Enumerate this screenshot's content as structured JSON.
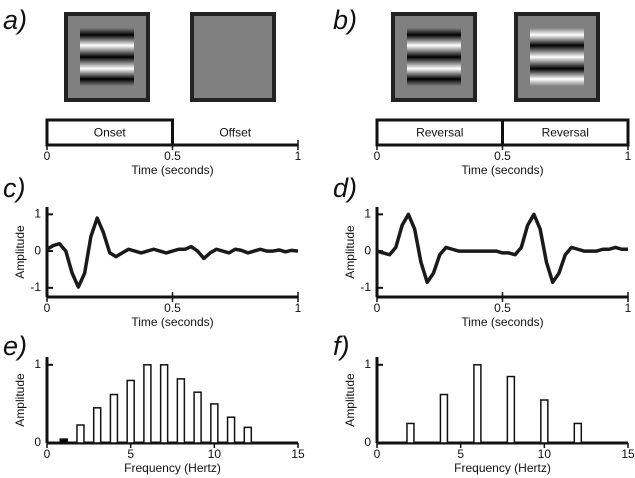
{
  "chart_data": [
    {
      "type": "timeline",
      "panel": "a)",
      "segments": [
        {
          "label": "Onset",
          "start": 0,
          "end": 0.5,
          "boxed": true
        },
        {
          "label": "Offset",
          "start": 0.5,
          "end": 1,
          "boxed": false
        }
      ],
      "xlim": [
        0,
        1
      ],
      "xticks": [
        0,
        0.5,
        1
      ],
      "xlabel": "Time (seconds)"
    },
    {
      "type": "timeline",
      "panel": "b)",
      "segments": [
        {
          "label": "Reversal",
          "start": 0,
          "end": 0.5,
          "boxed": true
        },
        {
          "label": "Reversal",
          "start": 0.5,
          "end": 1,
          "boxed": true
        }
      ],
      "xlim": [
        0,
        1
      ],
      "xticks": [
        0,
        0.5,
        1
      ],
      "xlabel": "Time (seconds)"
    },
    {
      "type": "line",
      "panel": "c)",
      "xlabel": "Time (seconds)",
      "ylabel": "Amplitude",
      "color": "#1a1a1a",
      "x": [
        0,
        0.025,
        0.05,
        0.075,
        0.1,
        0.125,
        0.15,
        0.175,
        0.2,
        0.225,
        0.25,
        0.275,
        0.3,
        0.325,
        0.35,
        0.375,
        0.4,
        0.425,
        0.45,
        0.475,
        0.5,
        0.525,
        0.55,
        0.575,
        0.6,
        0.625,
        0.65,
        0.675,
        0.7,
        0.725,
        0.75,
        0.775,
        0.8,
        0.825,
        0.85,
        0.875,
        0.9,
        0.925,
        0.95,
        0.975,
        1
      ],
      "values": [
        0.05,
        0.15,
        0.2,
        0.0,
        -0.6,
        -0.98,
        -0.6,
        0.4,
        0.9,
        0.5,
        -0.05,
        -0.15,
        -0.05,
        0.05,
        0.0,
        -0.05,
        0.0,
        0.05,
        0.0,
        -0.05,
        0.0,
        0.05,
        0.05,
        0.12,
        0.0,
        -0.2,
        -0.05,
        0.05,
        0.0,
        -0.05,
        0.05,
        0.02,
        -0.05,
        0.0,
        0.05,
        0.0,
        0.0,
        0.03,
        -0.02,
        0.02,
        0.0
      ],
      "xlim": [
        0,
        1
      ],
      "xticks": [
        0,
        0.5,
        1
      ],
      "ylim": [
        -1.25,
        1.2
      ],
      "yticks": [
        -1,
        0,
        1
      ]
    },
    {
      "type": "line",
      "panel": "d)",
      "xlabel": "Time (seconds)",
      "ylabel": "Amplitude",
      "color": "#1a1a1a",
      "x": [
        0,
        0.025,
        0.05,
        0.075,
        0.1,
        0.125,
        0.15,
        0.175,
        0.2,
        0.225,
        0.25,
        0.275,
        0.3,
        0.325,
        0.35,
        0.375,
        0.4,
        0.425,
        0.45,
        0.475,
        0.5,
        0.525,
        0.55,
        0.575,
        0.6,
        0.625,
        0.65,
        0.675,
        0.7,
        0.725,
        0.75,
        0.775,
        0.8,
        0.825,
        0.85,
        0.875,
        0.9,
        0.925,
        0.95,
        0.975,
        1
      ],
      "values": [
        0.0,
        -0.05,
        -0.1,
        0.1,
        0.7,
        1.0,
        0.6,
        -0.3,
        -0.85,
        -0.6,
        -0.1,
        0.1,
        0.05,
        0.0,
        0.0,
        0.0,
        0.0,
        0.0,
        0.0,
        0.0,
        -0.05,
        -0.05,
        -0.1,
        0.1,
        0.7,
        1.0,
        0.6,
        -0.3,
        -0.85,
        -0.6,
        -0.1,
        0.1,
        0.05,
        0.0,
        0.0,
        0.0,
        0.05,
        0.05,
        0.1,
        0.05,
        0.05
      ],
      "xlim": [
        0,
        1
      ],
      "xticks": [
        0,
        0.5,
        1
      ],
      "ylim": [
        -1.25,
        1.2
      ],
      "yticks": [
        -1,
        0,
        1
      ]
    },
    {
      "type": "bar",
      "panel": "e)",
      "xlabel": "Frequency (Hertz)",
      "ylabel": "Amplitude",
      "x": [
        1,
        2,
        3,
        4,
        5,
        6,
        7,
        8,
        9,
        10,
        11,
        12
      ],
      "values": [
        0.05,
        0.23,
        0.45,
        0.62,
        0.8,
        1.0,
        1.0,
        0.82,
        0.65,
        0.5,
        0.33,
        0.2
      ],
      "colors": [
        "#000000",
        "#ffffff",
        "#ffffff",
        "#ffffff",
        "#ffffff",
        "#ffffff",
        "#ffffff",
        "#ffffff",
        "#ffffff",
        "#ffffff",
        "#ffffff",
        "#ffffff"
      ],
      "xlim": [
        0,
        15
      ],
      "xticks": [
        0,
        5,
        10,
        15
      ],
      "ylim": [
        0,
        1.1
      ],
      "yticks": [
        0,
        1
      ]
    },
    {
      "type": "bar",
      "panel": "f)",
      "xlabel": "Frequency (Hertz)",
      "ylabel": "Amplitude",
      "x": [
        2,
        4,
        6,
        8,
        10,
        12
      ],
      "values": [
        0.25,
        0.62,
        1.0,
        0.85,
        0.55,
        0.25
      ],
      "colors": [
        "#ffffff",
        "#ffffff",
        "#ffffff",
        "#ffffff",
        "#ffffff",
        "#ffffff"
      ],
      "xlim": [
        0,
        15
      ],
      "xticks": [
        0,
        5,
        10,
        15
      ],
      "ylim": [
        0,
        1.1
      ],
      "yticks": [
        0,
        1
      ]
    }
  ]
}
